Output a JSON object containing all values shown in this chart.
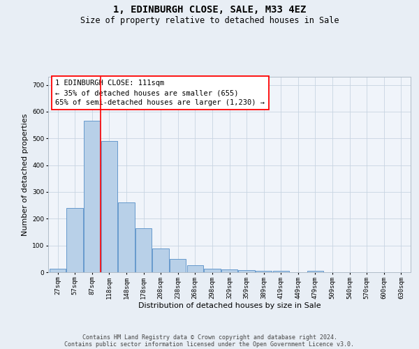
{
  "title": "1, EDINBURGH CLOSE, SALE, M33 4EZ",
  "subtitle": "Size of property relative to detached houses in Sale",
  "xlabel": "Distribution of detached houses by size in Sale",
  "ylabel": "Number of detached properties",
  "bar_labels": [
    "27sqm",
    "57sqm",
    "87sqm",
    "118sqm",
    "148sqm",
    "178sqm",
    "208sqm",
    "238sqm",
    "268sqm",
    "298sqm",
    "329sqm",
    "359sqm",
    "389sqm",
    "419sqm",
    "449sqm",
    "479sqm",
    "509sqm",
    "540sqm",
    "570sqm",
    "600sqm",
    "630sqm"
  ],
  "bar_values": [
    12,
    240,
    565,
    490,
    260,
    165,
    88,
    50,
    25,
    14,
    10,
    7,
    5,
    4,
    0,
    5,
    0,
    0,
    0,
    0,
    0
  ],
  "bar_color": "#b8d0e8",
  "bar_edge_color": "#6699cc",
  "property_line_label": "1 EDINBURGH CLOSE: 111sqm",
  "annotation_line1": "← 35% of detached houses are smaller (655)",
  "annotation_line2": "65% of semi-detached houses are larger (1,230) →",
  "ylim": [
    0,
    730
  ],
  "yticks": [
    0,
    100,
    200,
    300,
    400,
    500,
    600,
    700
  ],
  "footer_line1": "Contains HM Land Registry data © Crown copyright and database right 2024.",
  "footer_line2": "Contains public sector information licensed under the Open Government Licence v3.0.",
  "bg_color": "#e8eef5",
  "plot_bg_color": "#f0f4fa",
  "line_bar_index": 3,
  "title_fontsize": 10,
  "subtitle_fontsize": 8.5,
  "ylabel_fontsize": 8,
  "xlabel_fontsize": 8,
  "tick_fontsize": 6.5,
  "annot_fontsize": 7.5,
  "footer_fontsize": 6
}
